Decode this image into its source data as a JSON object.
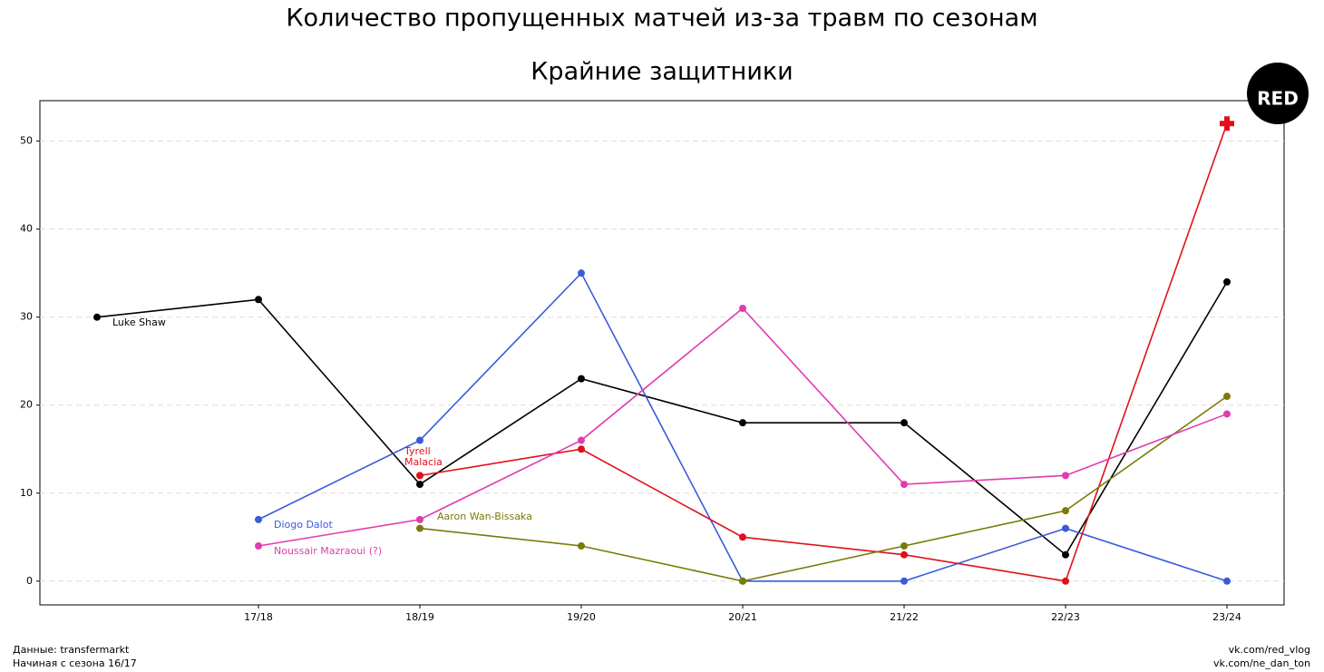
{
  "chart_data": {
    "type": "line",
    "title": "Количество пропущенных матчей из-за травм по сезонам",
    "subtitle": "Крайние защитники",
    "categories": [
      null,
      "17/18",
      "18/19",
      "19/20",
      "20/21",
      "21/22",
      "22/23",
      "23/24"
    ],
    "series": [
      {
        "name": "Luke Shaw",
        "color": "#000000",
        "values": [
          30,
          32,
          11,
          23,
          18,
          18,
          3,
          34
        ]
      },
      {
        "name": "Diogo Dalot",
        "color": "#3a5bd9",
        "values": [
          null,
          7,
          16,
          35,
          0,
          0,
          6,
          0
        ]
      },
      {
        "name": "Tyrell\nMalacia",
        "color": "#e0101a",
        "values": [
          null,
          null,
          12,
          15,
          5,
          3,
          0,
          52
        ],
        "last_marker": "cross"
      },
      {
        "name": "Aaron Wan-Bissaka",
        "color": "#7a7a0a",
        "values": [
          null,
          null,
          6,
          4,
          0,
          4,
          8,
          21
        ]
      },
      {
        "name": "Noussair Mazraoui (?)",
        "color": "#e03cb0",
        "values": [
          null,
          4,
          7,
          16,
          31,
          11,
          12,
          19
        ]
      }
    ],
    "ylim": [
      -2.7,
      54.6
    ],
    "yticks": [
      0,
      10,
      20,
      30,
      40,
      50
    ],
    "grid": true,
    "logo": "RED",
    "footer_left": [
      "Данные: transfermarkt",
      "Начиная с сезона 16/17"
    ],
    "footer_right": [
      "vk.com/red_vlog",
      "vk.com/ne_dan_ton"
    ]
  }
}
